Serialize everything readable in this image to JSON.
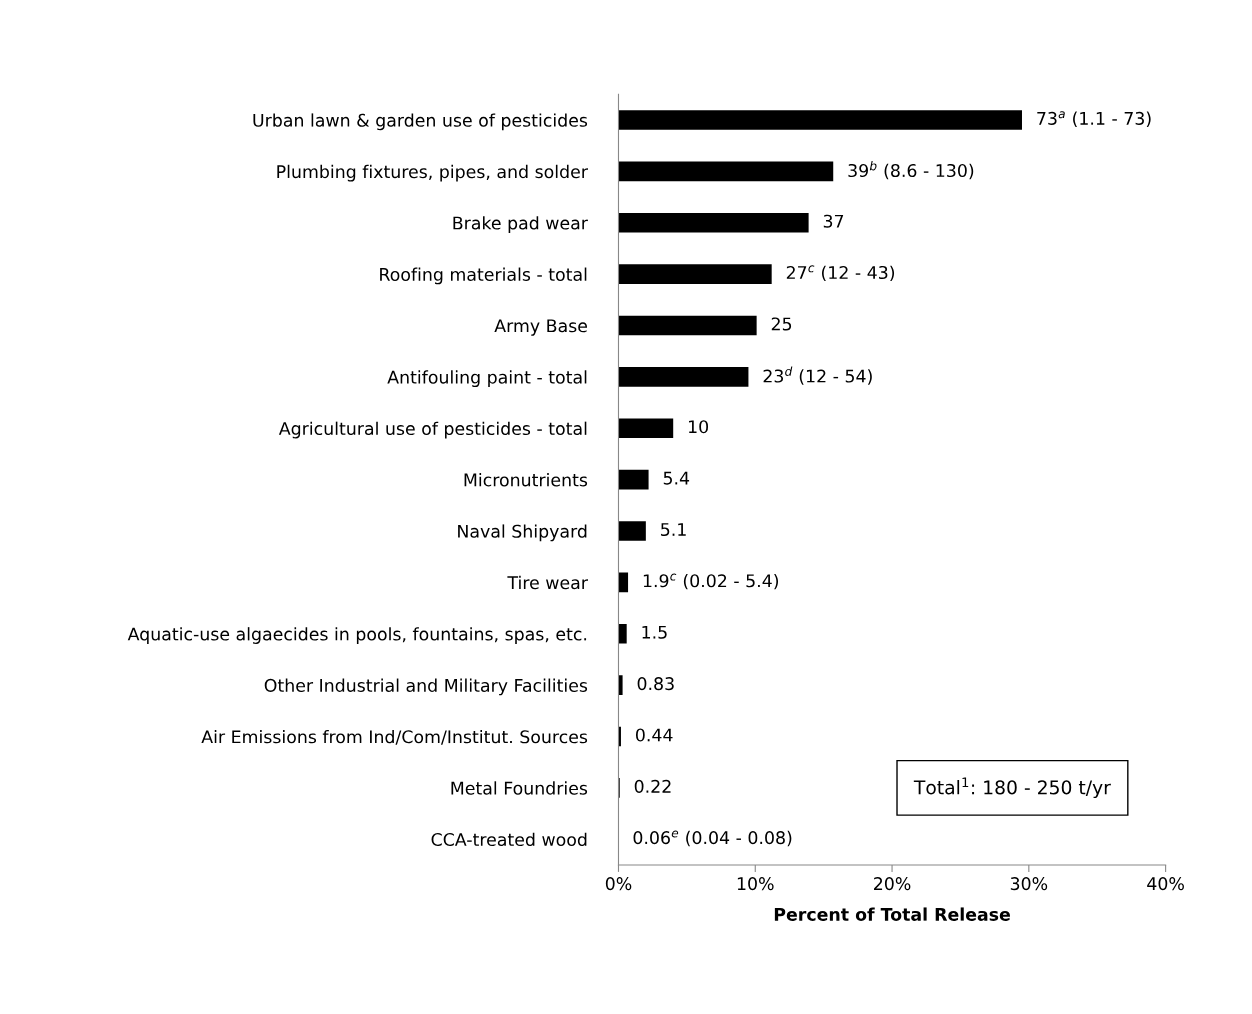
{
  "chart_data": {
    "type": "bar",
    "orientation": "horizontal",
    "xlabel": "Percent of Total Release",
    "categories": [
      "Urban lawn & garden use of pesticides",
      "Plumbing fixtures, pipes, and solder",
      "Brake pad wear",
      "Roofing materials - total",
      "Army Base",
      "Antifouling paint - total",
      "Agricultural use of pesticides - total",
      "Micronutrients",
      "Naval Shipyard",
      "Tire wear",
      "Aquatic-use algaecides in pools, fountains, spas, etc.",
      "Other Industrial and Military Facilities",
      "Air Emissions from Ind/Com/Institut. Sources",
      "Metal Foundries",
      "CCA-treated wood"
    ],
    "values": [
      29.5,
      15.7,
      13.9,
      11.2,
      10.1,
      9.5,
      4.0,
      2.2,
      2.0,
      0.7,
      0.6,
      0.3,
      0.18,
      0.09,
      null
    ],
    "color": "#000000",
    "xlim": [
      0,
      40
    ],
    "xticks": [
      {
        "value": 0,
        "label": "0%"
      },
      {
        "value": 10,
        "label": "10%"
      },
      {
        "value": 20,
        "label": "20%"
      },
      {
        "value": 30,
        "label": "30%"
      },
      {
        "value": 40,
        "label": "40%"
      }
    ],
    "grid": false,
    "annotations": [
      {
        "text": "73$^{a}$ (1.1 - 73)",
        "x": 29.5,
        "y": "Urban lawn & garden use of pesticides"
      },
      {
        "text": "39$^{b}$ (8.6 - 130)",
        "x": 15.7,
        "y": "Plumbing fixtures, pipes, and solder"
      },
      {
        "text": "37",
        "x": 13.9,
        "y": "Brake pad wear"
      },
      {
        "text": "27$^{c}$ (12 - 43)",
        "x": 11.2,
        "y": "Roofing materials - total"
      },
      {
        "text": "25",
        "x": 10.1,
        "y": "Army Base"
      },
      {
        "text": "23$^{d}$ (12 - 54)",
        "x": 9.5,
        "y": "Antifouling paint - total"
      },
      {
        "text": "10",
        "x": 4.0,
        "y": "Agricultural use of pesticides - total"
      },
      {
        "text": "5.4",
        "x": 2.2,
        "y": "Micronutrients"
      },
      {
        "text": "5.1",
        "x": 2.0,
        "y": "Naval Shipyard"
      },
      {
        "text": "1.9$^{c}$ (0.02 - 5.4)",
        "x": 0.7,
        "y": "Tire wear"
      },
      {
        "text": "1.5",
        "x": 0.6,
        "y": "Aquatic-use algaecides in pools, fountains, spas, etc."
      },
      {
        "text": "0.83",
        "x": 0.3,
        "y": "Other Industrial and Military Facilities"
      },
      {
        "text": "0.44",
        "x": 0.18,
        "y": "Air Emissions from Ind/Com/Institut. Sources"
      },
      {
        "text": "0.22",
        "x": 0.09,
        "y": "Metal Foundries"
      },
      "0.06$^{e}$ (0.04 - 0.08)",
      "Total$^{1}$: 180 - 250 t/yr"
    ]
  }
}
